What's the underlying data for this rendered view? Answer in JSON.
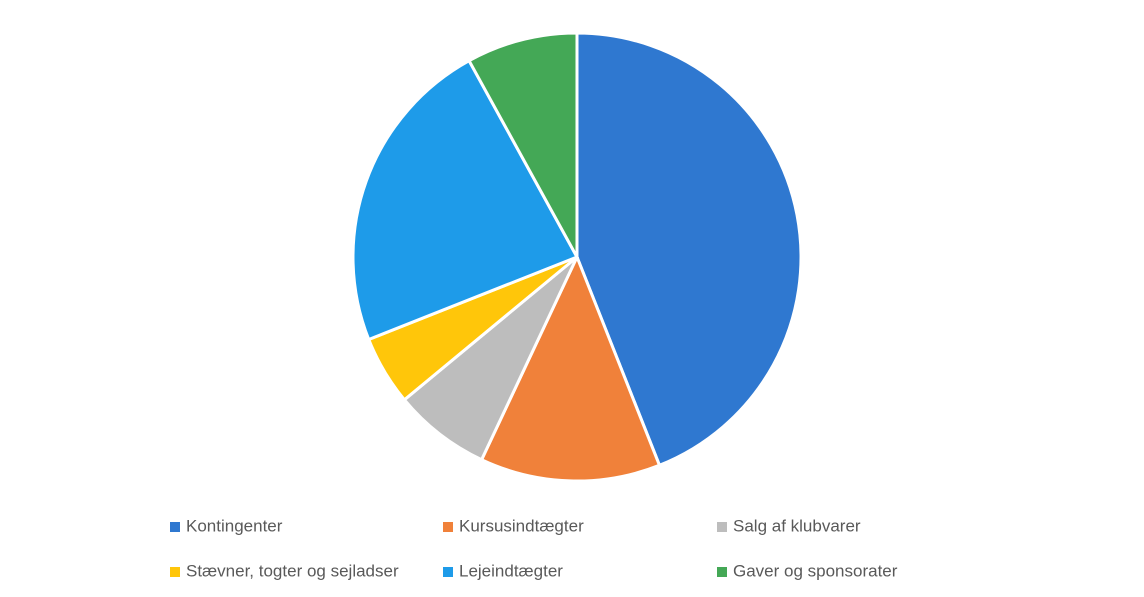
{
  "chart_data": {
    "type": "pie",
    "categories": [
      "Kontingenter",
      "Kursusindtægter",
      "Salg af klubvarer",
      "Stævner, togter og sejladser",
      "Lejeindtægter",
      "Gaver og sponsorater"
    ],
    "values": [
      44,
      13,
      7,
      5,
      23,
      8
    ],
    "colors": [
      "#2f78d0",
      "#f0813a",
      "#bdbdbd",
      "#ffc60a",
      "#1e9be9",
      "#44a856"
    ]
  }
}
